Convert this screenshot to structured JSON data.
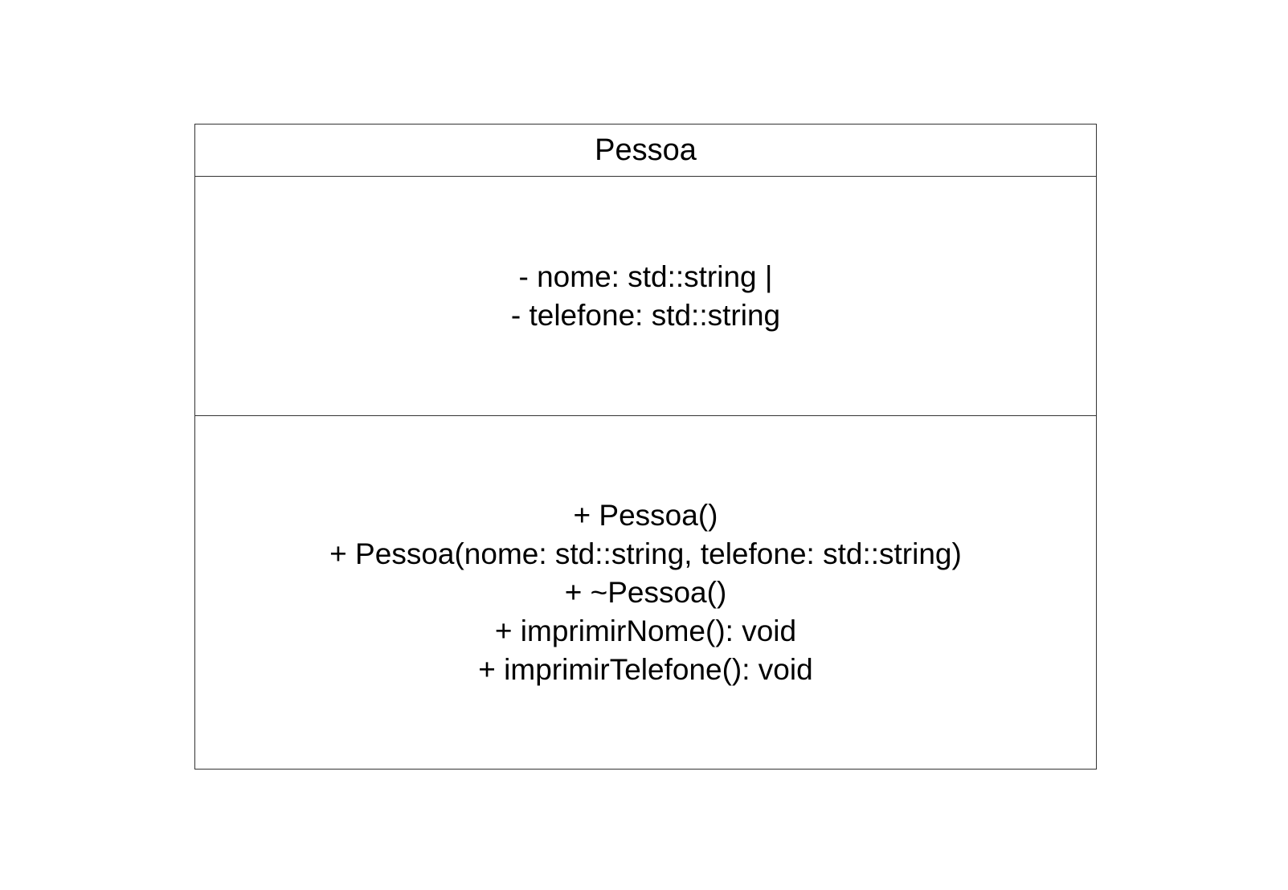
{
  "uml_class": {
    "name": "Pessoa",
    "attributes": [
      "- nome: std::string |",
      "- telefone: std::string"
    ],
    "methods": [
      "+ Pessoa()",
      "+ Pessoa(nome: std::string, telefone: std::string)",
      "+ ~Pessoa()",
      "+ imprimirNome(): void",
      "+ imprimirTelefone(): void"
    ]
  },
  "colors": {
    "border": "#333333",
    "text": "#000000",
    "background": "#ffffff"
  }
}
